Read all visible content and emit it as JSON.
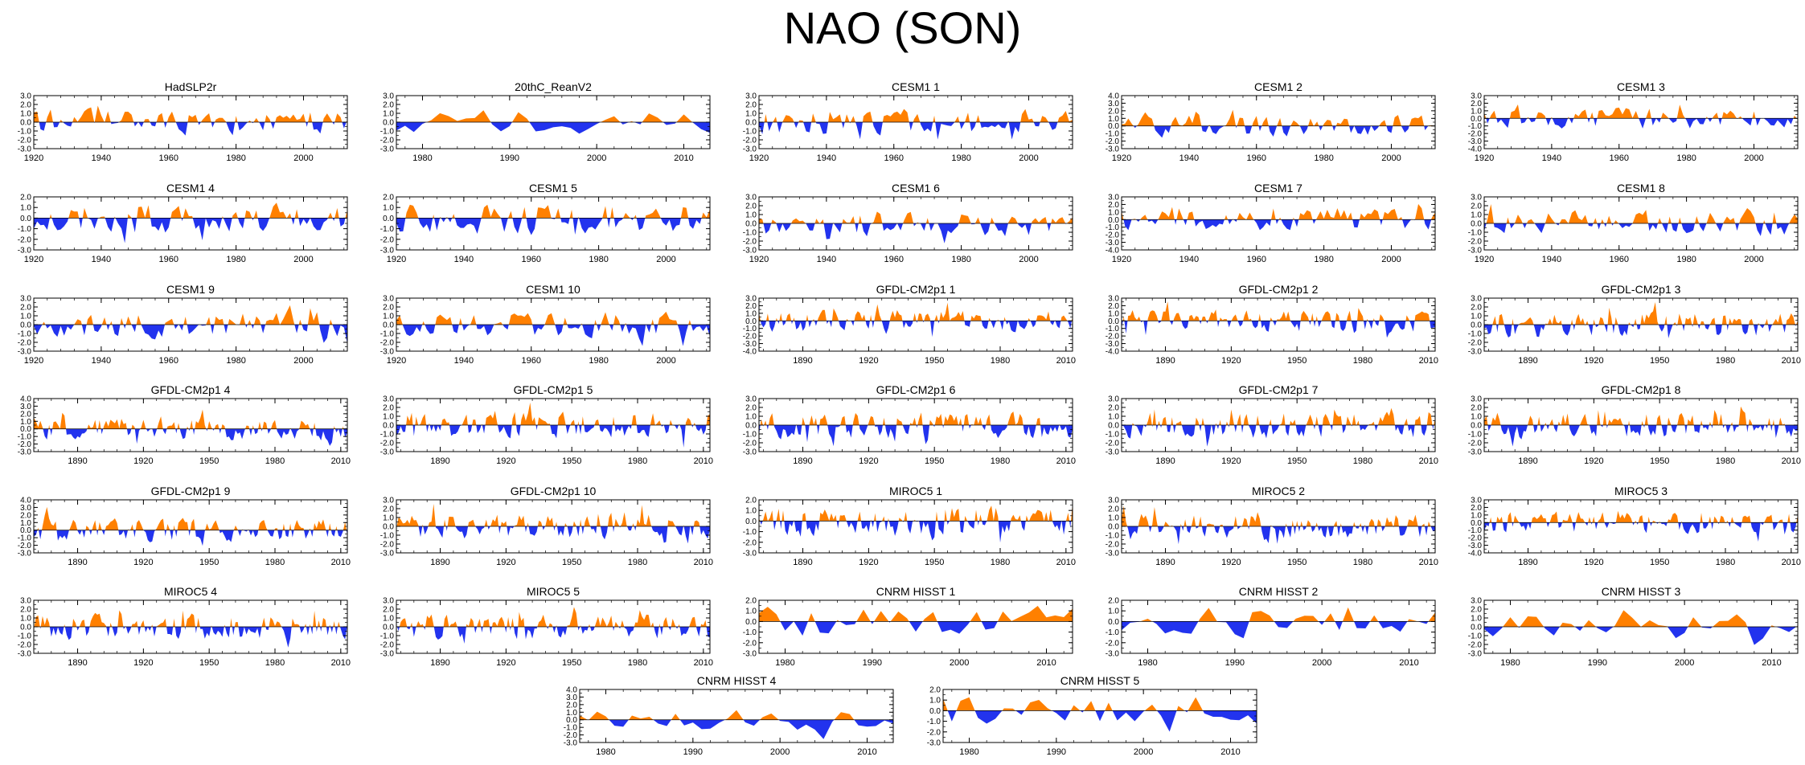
{
  "title": "NAO (SON)",
  "colors": {
    "positive": "#ff8000",
    "negative": "#2233ee",
    "axis": "#000000"
  },
  "chart_data": [
    {
      "type": "area",
      "title": "HadSLP2r",
      "xticks": [
        1920,
        1940,
        1960,
        1980,
        2000
      ],
      "xlim": [
        1920,
        2013
      ],
      "yticks": [
        "3.0",
        "2.0",
        "1.0",
        "0.0",
        "-1.0",
        "-2.0",
        "-3.0"
      ],
      "ylim": [
        -3,
        3
      ],
      "seed": 11
    },
    {
      "type": "area",
      "title": "20thC_ReanV2",
      "xticks": [
        1980,
        1990,
        2000,
        2010
      ],
      "xlim": [
        1977,
        2013
      ],
      "yticks": [
        "3.0",
        "2.0",
        "1.0",
        "0.0",
        "-1.0",
        "-2.0",
        "-3.0"
      ],
      "ylim": [
        -3,
        3
      ],
      "seed": 12
    },
    {
      "type": "area",
      "title": "CESM1 1",
      "xticks": [
        1920,
        1940,
        1960,
        1980,
        2000
      ],
      "xlim": [
        1920,
        2013
      ],
      "yticks": [
        "3.0",
        "2.0",
        "1.0",
        "0.0",
        "-1.0",
        "-2.0",
        "-3.0"
      ],
      "ylim": [
        -3,
        3
      ],
      "seed": 13
    },
    {
      "type": "area",
      "title": "CESM1 2",
      "xticks": [
        1920,
        1940,
        1960,
        1980,
        2000
      ],
      "xlim": [
        1920,
        2013
      ],
      "yticks": [
        "4.0",
        "3.0",
        "2.0",
        "1.0",
        "0.0",
        "-1.0",
        "-2.0",
        "-3.0"
      ],
      "ylim": [
        -3,
        4
      ],
      "seed": 14
    },
    {
      "type": "area",
      "title": "CESM1 3",
      "xticks": [
        1920,
        1940,
        1960,
        1980,
        2000
      ],
      "xlim": [
        1920,
        2013
      ],
      "yticks": [
        "3.0",
        "2.0",
        "1.0",
        "0.0",
        "-1.0",
        "-2.0",
        "-3.0",
        "-4.0"
      ],
      "ylim": [
        -4,
        3
      ],
      "seed": 15
    },
    {
      "type": "area",
      "title": "CESM1 4",
      "xticks": [
        1920,
        1940,
        1960,
        1980,
        2000
      ],
      "xlim": [
        1920,
        2013
      ],
      "yticks": [
        "2.0",
        "1.0",
        "0.0",
        "-1.0",
        "-2.0",
        "-3.0"
      ],
      "ylim": [
        -3,
        2
      ],
      "seed": 21
    },
    {
      "type": "area",
      "title": "CESM1 5",
      "xticks": [
        1920,
        1940,
        1960,
        1980,
        2000
      ],
      "xlim": [
        1920,
        2013
      ],
      "yticks": [
        "2.0",
        "1.0",
        "0.0",
        "-1.0",
        "-2.0",
        "-3.0"
      ],
      "ylim": [
        -3,
        2
      ],
      "seed": 22
    },
    {
      "type": "area",
      "title": "CESM1 6",
      "xticks": [
        1920,
        1940,
        1960,
        1980,
        2000
      ],
      "xlim": [
        1920,
        2013
      ],
      "yticks": [
        "3.0",
        "2.0",
        "1.0",
        "0.0",
        "-1.0",
        "-2.0",
        "-3.0"
      ],
      "ylim": [
        -3,
        3
      ],
      "seed": 23
    },
    {
      "type": "area",
      "title": "CESM1 7",
      "xticks": [
        1920,
        1940,
        1960,
        1980,
        2000
      ],
      "xlim": [
        1920,
        2013
      ],
      "yticks": [
        "3.0",
        "2.0",
        "1.0",
        "0.0",
        "-1.0",
        "-2.0",
        "-3.0",
        "-4.0"
      ],
      "ylim": [
        -4,
        3
      ],
      "seed": 24
    },
    {
      "type": "area",
      "title": "CESM1 8",
      "xticks": [
        1920,
        1940,
        1960,
        1980,
        2000
      ],
      "xlim": [
        1920,
        2013
      ],
      "yticks": [
        "3.0",
        "2.0",
        "1.0",
        "0.0",
        "-1.0",
        "-2.0",
        "-3.0"
      ],
      "ylim": [
        -3,
        3
      ],
      "seed": 25
    },
    {
      "type": "area",
      "title": "CESM1 9",
      "xticks": [
        1920,
        1940,
        1960,
        1980,
        2000
      ],
      "xlim": [
        1920,
        2013
      ],
      "yticks": [
        "3.0",
        "2.0",
        "1.0",
        "0.0",
        "-1.0",
        "-2.0",
        "-3.0"
      ],
      "ylim": [
        -3,
        3
      ],
      "seed": 31
    },
    {
      "type": "area",
      "title": "CESM1 10",
      "xticks": [
        1920,
        1940,
        1960,
        1980,
        2000
      ],
      "xlim": [
        1920,
        2013
      ],
      "yticks": [
        "3.0",
        "2.0",
        "1.0",
        "0.0",
        "-1.0",
        "-2.0",
        "-3.0"
      ],
      "ylim": [
        -3,
        3
      ],
      "seed": 32
    },
    {
      "type": "area",
      "title": "GFDL-CM2p1 1",
      "xticks": [
        1890,
        1920,
        1950,
        1980,
        2010
      ],
      "xlim": [
        1870,
        2013
      ],
      "yticks": [
        "3.0",
        "2.0",
        "1.0",
        "0.0",
        "-1.0",
        "-2.0",
        "-3.0",
        "-4.0"
      ],
      "ylim": [
        -4,
        3
      ],
      "seed": 33
    },
    {
      "type": "area",
      "title": "GFDL-CM2p1 2",
      "xticks": [
        1890,
        1920,
        1950,
        1980,
        2010
      ],
      "xlim": [
        1870,
        2013
      ],
      "yticks": [
        "3.0",
        "2.0",
        "1.0",
        "0.0",
        "-1.0",
        "-2.0",
        "-3.0",
        "-4.0"
      ],
      "ylim": [
        -4,
        3
      ],
      "seed": 34
    },
    {
      "type": "area",
      "title": "GFDL-CM2p1 3",
      "xticks": [
        1890,
        1920,
        1950,
        1980,
        2010
      ],
      "xlim": [
        1870,
        2013
      ],
      "yticks": [
        "3.0",
        "2.0",
        "1.0",
        "0.0",
        "-1.0",
        "-2.0",
        "-3.0"
      ],
      "ylim": [
        -3,
        3
      ],
      "seed": 35
    },
    {
      "type": "area",
      "title": "GFDL-CM2p1 4",
      "xticks": [
        1890,
        1920,
        1950,
        1980,
        2010
      ],
      "xlim": [
        1870,
        2013
      ],
      "yticks": [
        "4.0",
        "3.0",
        "2.0",
        "1.0",
        "0.0",
        "-1.0",
        "-2.0",
        "-3.0"
      ],
      "ylim": [
        -3,
        4
      ],
      "seed": 41
    },
    {
      "type": "area",
      "title": "GFDL-CM2p1 5",
      "xticks": [
        1890,
        1920,
        1950,
        1980,
        2010
      ],
      "xlim": [
        1870,
        2013
      ],
      "yticks": [
        "3.0",
        "2.0",
        "1.0",
        "0.0",
        "-1.0",
        "-2.0",
        "-3.0"
      ],
      "ylim": [
        -3,
        3
      ],
      "seed": 42
    },
    {
      "type": "area",
      "title": "GFDL-CM2p1 6",
      "xticks": [
        1890,
        1920,
        1950,
        1980,
        2010
      ],
      "xlim": [
        1870,
        2013
      ],
      "yticks": [
        "3.0",
        "2.0",
        "1.0",
        "0.0",
        "-1.0",
        "-2.0",
        "-3.0"
      ],
      "ylim": [
        -3,
        3
      ],
      "seed": 43
    },
    {
      "type": "area",
      "title": "GFDL-CM2p1 7",
      "xticks": [
        1890,
        1920,
        1950,
        1980,
        2010
      ],
      "xlim": [
        1870,
        2013
      ],
      "yticks": [
        "3.0",
        "2.0",
        "1.0",
        "0.0",
        "-1.0",
        "-2.0",
        "-3.0"
      ],
      "ylim": [
        -3,
        3
      ],
      "seed": 44
    },
    {
      "type": "area",
      "title": "GFDL-CM2p1 8",
      "xticks": [
        1890,
        1920,
        1950,
        1980,
        2010
      ],
      "xlim": [
        1870,
        2013
      ],
      "yticks": [
        "3.0",
        "2.0",
        "1.0",
        "0.0",
        "-1.0",
        "-2.0",
        "-3.0"
      ],
      "ylim": [
        -3,
        3
      ],
      "seed": 45
    },
    {
      "type": "area",
      "title": "GFDL-CM2p1 9",
      "xticks": [
        1890,
        1920,
        1950,
        1980,
        2010
      ],
      "xlim": [
        1870,
        2013
      ],
      "yticks": [
        "4.0",
        "3.0",
        "2.0",
        "1.0",
        "0.0",
        "-1.0",
        "-2.0",
        "-3.0"
      ],
      "ylim": [
        -3,
        4
      ],
      "seed": 51
    },
    {
      "type": "area",
      "title": "GFDL-CM2p1 10",
      "xticks": [
        1890,
        1920,
        1950,
        1980,
        2010
      ],
      "xlim": [
        1870,
        2013
      ],
      "yticks": [
        "3.0",
        "2.0",
        "1.0",
        "0.0",
        "-1.0",
        "-2.0",
        "-3.0"
      ],
      "ylim": [
        -3,
        3
      ],
      "seed": 52
    },
    {
      "type": "area",
      "title": "MIROC5 1",
      "xticks": [
        1890,
        1920,
        1950,
        1980,
        2010
      ],
      "xlim": [
        1870,
        2013
      ],
      "yticks": [
        "2.0",
        "1.0",
        "0.0",
        "-1.0",
        "-2.0",
        "-3.0"
      ],
      "ylim": [
        -3,
        2
      ],
      "seed": 53
    },
    {
      "type": "area",
      "title": "MIROC5 2",
      "xticks": [
        1890,
        1920,
        1950,
        1980,
        2010
      ],
      "xlim": [
        1870,
        2013
      ],
      "yticks": [
        "3.0",
        "2.0",
        "1.0",
        "0.0",
        "-1.0",
        "-2.0",
        "-3.0"
      ],
      "ylim": [
        -3,
        3
      ],
      "seed": 54
    },
    {
      "type": "area",
      "title": "MIROC5 3",
      "xticks": [
        1890,
        1920,
        1950,
        1980,
        2010
      ],
      "xlim": [
        1870,
        2013
      ],
      "yticks": [
        "3.0",
        "2.0",
        "1.0",
        "0.0",
        "-1.0",
        "-2.0",
        "-3.0",
        "-4.0"
      ],
      "ylim": [
        -4,
        3
      ],
      "seed": 55
    },
    {
      "type": "area",
      "title": "MIROC5 4",
      "xticks": [
        1890,
        1920,
        1950,
        1980,
        2010
      ],
      "xlim": [
        1870,
        2013
      ],
      "yticks": [
        "3.0",
        "2.0",
        "1.0",
        "0.0",
        "-1.0",
        "-2.0",
        "-3.0"
      ],
      "ylim": [
        -3,
        3
      ],
      "seed": 61
    },
    {
      "type": "area",
      "title": "MIROC5 5",
      "xticks": [
        1890,
        1920,
        1950,
        1980,
        2010
      ],
      "xlim": [
        1870,
        2013
      ],
      "yticks": [
        "3.0",
        "2.0",
        "1.0",
        "0.0",
        "-1.0",
        "-2.0",
        "-3.0"
      ],
      "ylim": [
        -3,
        3
      ],
      "seed": 62
    },
    {
      "type": "area",
      "title": "CNRM HISST 1",
      "xticks": [
        1980,
        1990,
        2000,
        2010
      ],
      "xlim": [
        1977,
        2013
      ],
      "yticks": [
        "2.0",
        "1.0",
        "0.0",
        "-1.0",
        "-2.0",
        "-3.0"
      ],
      "ylim": [
        -3,
        2
      ],
      "seed": 63
    },
    {
      "type": "area",
      "title": "CNRM HISST 2",
      "xticks": [
        1980,
        1990,
        2000,
        2010
      ],
      "xlim": [
        1977,
        2013
      ],
      "yticks": [
        "2.0",
        "1.0",
        "0.0",
        "-1.0",
        "-2.0",
        "-3.0"
      ],
      "ylim": [
        -3,
        2
      ],
      "seed": 64
    },
    {
      "type": "area",
      "title": "CNRM HISST 3",
      "xticks": [
        1980,
        1990,
        2000,
        2010
      ],
      "xlim": [
        1977,
        2013
      ],
      "yticks": [
        "3.0",
        "2.0",
        "1.0",
        "0.0",
        "-1.0",
        "-2.0",
        "-3.0"
      ],
      "ylim": [
        -3,
        3
      ],
      "seed": 65
    },
    {
      "type": "area",
      "title": "CNRM HISST 4",
      "xticks": [
        1980,
        1990,
        2000,
        2010
      ],
      "xlim": [
        1977,
        2013
      ],
      "yticks": [
        "4.0",
        "3.0",
        "2.0",
        "1.0",
        "0.0",
        "-1.0",
        "-2.0",
        "-3.0"
      ],
      "ylim": [
        -3,
        4
      ],
      "seed": 71
    },
    {
      "type": "area",
      "title": "CNRM HISST 5",
      "xticks": [
        1980,
        1990,
        2000,
        2010
      ],
      "xlim": [
        1977,
        2013
      ],
      "yticks": [
        "2.0",
        "1.0",
        "0.0",
        "-1.0",
        "-2.0",
        "-3.0"
      ],
      "ylim": [
        -3,
        2
      ],
      "seed": 72
    }
  ]
}
